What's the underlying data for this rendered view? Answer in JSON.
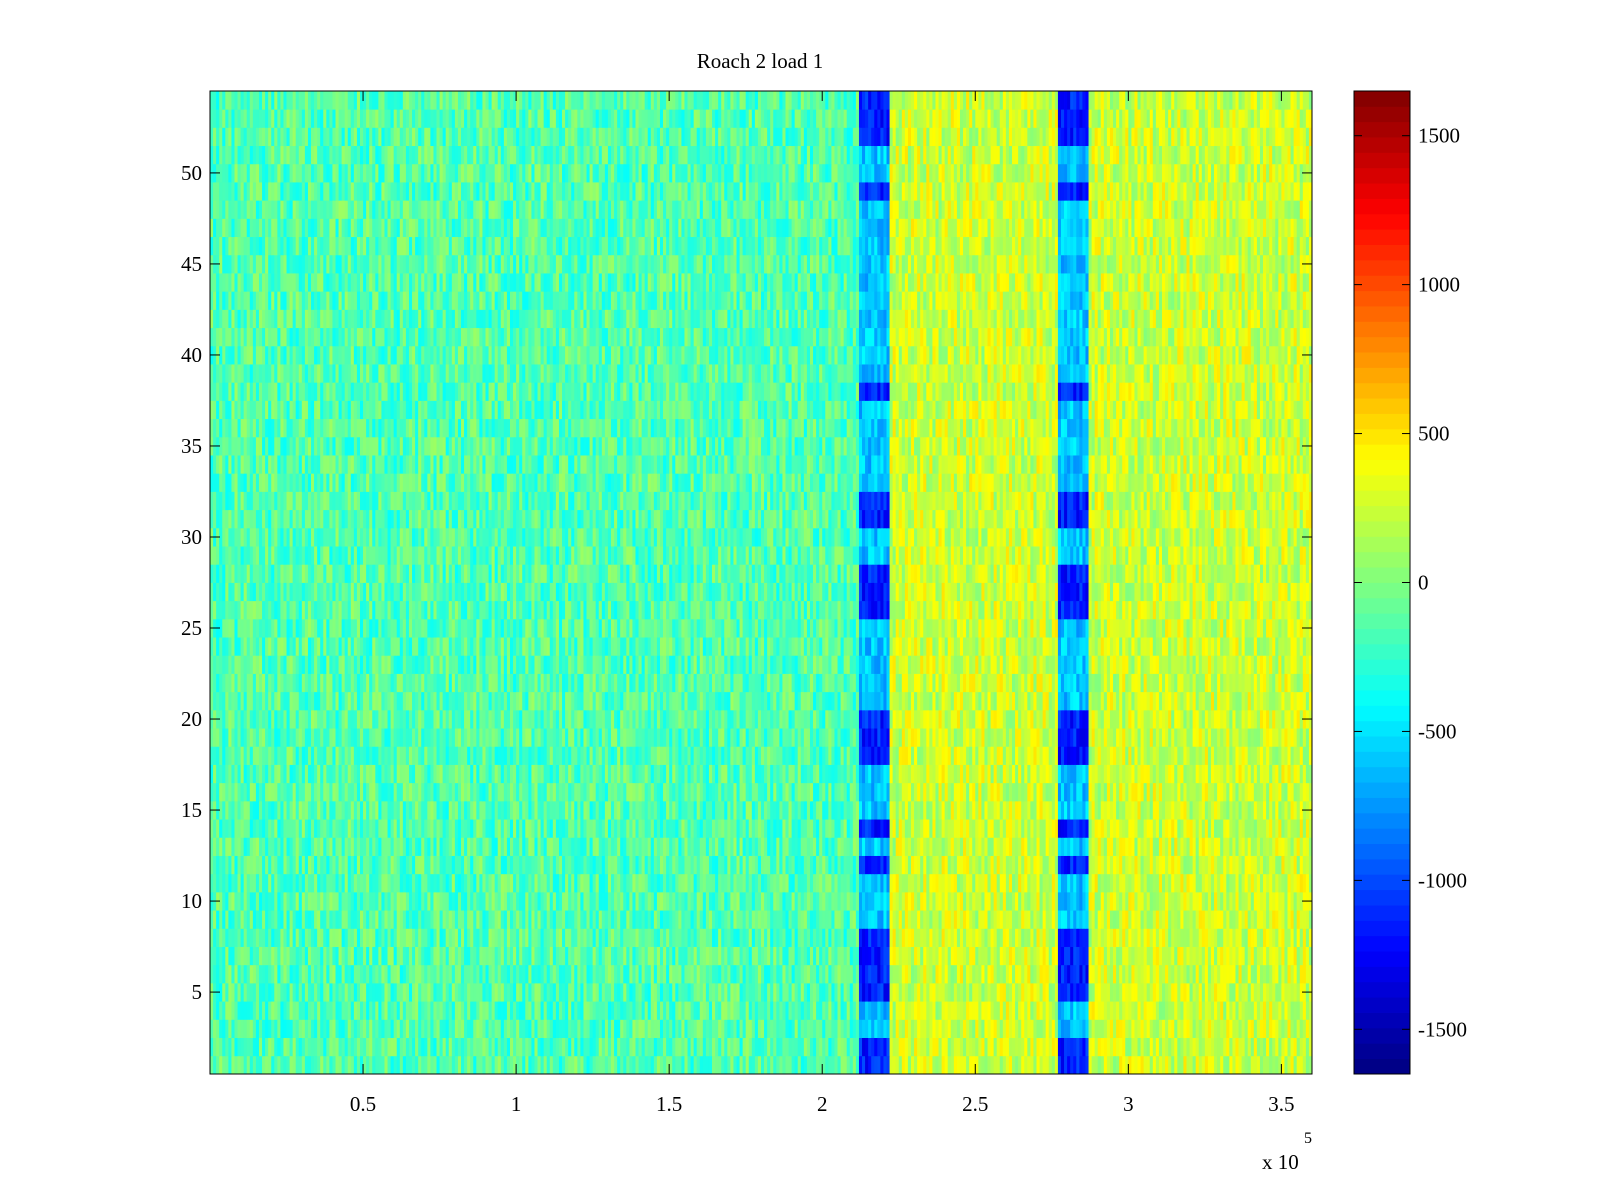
{
  "chart_data": {
    "type": "heatmap",
    "title": "Roach 2 load 1",
    "xlabel": "",
    "ylabel": "",
    "x_exponent_label": "x 10",
    "x_exponent_power": "5",
    "xlim": [
      0,
      3.6
    ],
    "ylim": [
      0.5,
      54.5
    ],
    "x_scale_factor": 100000,
    "xticks": [
      0.5,
      1,
      1.5,
      2,
      2.5,
      3,
      3.5
    ],
    "xtick_labels": [
      "0.5",
      "1",
      "1.5",
      "2",
      "2.5",
      "3",
      "3.5"
    ],
    "yticks": [
      5,
      10,
      15,
      20,
      25,
      30,
      35,
      40,
      45,
      50
    ],
    "ytick_labels": [
      "5",
      "10",
      "15",
      "20",
      "25",
      "30",
      "35",
      "40",
      "45",
      "50"
    ],
    "rows": 54,
    "columns": 360,
    "colormap": "jet",
    "clim": [
      -1650,
      1650
    ],
    "colorbar_ticks": [
      -1500,
      -1000,
      -500,
      0,
      500,
      1000,
      1500
    ],
    "colorbar_tick_labels": [
      "-1500",
      "-1000",
      "-500",
      "0",
      "500",
      "1000",
      "1500"
    ],
    "base_level_left": -150,
    "base_level_right": 250,
    "level_shift_at_x": 2.2,
    "noise_amplitude": 250,
    "low_bands": [
      {
        "x_start": 2.12,
        "x_end": 2.22,
        "level": -600
      },
      {
        "x_start": 2.77,
        "x_end": 2.87,
        "level": -600
      }
    ],
    "band_dip_rows": [
      1,
      2,
      5,
      6,
      7,
      8,
      12,
      14,
      18,
      19,
      20,
      26,
      27,
      28,
      31,
      32,
      38,
      49,
      52,
      53,
      54
    ],
    "band_dip_level": -1150
  }
}
